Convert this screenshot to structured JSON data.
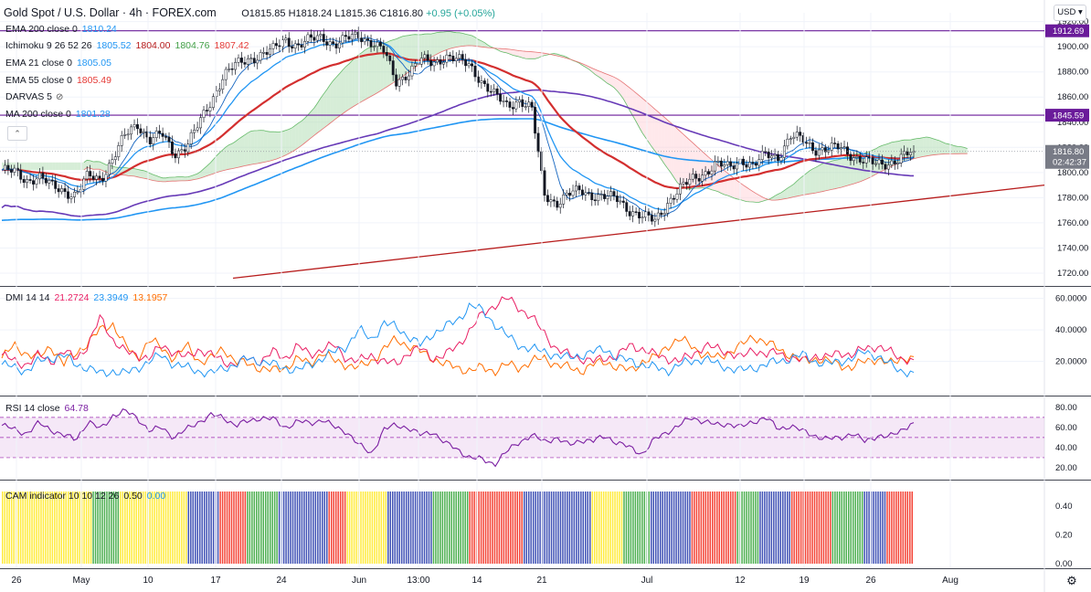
{
  "header": {
    "symbol": "Gold Spot / U.S. Dollar · 4h · FOREX.com",
    "open": "O1815.85",
    "high": "H1818.24",
    "low": "L1815.36",
    "close": "C1816.80",
    "change": "+0.95 (+0.05%)",
    "currency": "USD"
  },
  "indicators": [
    {
      "label": "EMA 200 close 0",
      "values": [
        {
          "v": "1810.24",
          "color": "#2196f3"
        }
      ]
    },
    {
      "label": "Ichimoku 9 26 52 26",
      "values": [
        {
          "v": "1805.52",
          "color": "#2196f3"
        },
        {
          "v": "1804.00",
          "color": "#b71c1c"
        },
        {
          "v": "1804.76",
          "color": "#43a047"
        },
        {
          "v": "1807.42",
          "color": "#e53935"
        }
      ]
    },
    {
      "label": "EMA 21 close 0",
      "values": [
        {
          "v": "1805.05",
          "color": "#2196f3"
        }
      ]
    },
    {
      "label": "EMA 55 close 0",
      "values": [
        {
          "v": "1805.49",
          "color": "#e53935"
        }
      ]
    },
    {
      "label": "DARVAS 5",
      "values": []
    },
    {
      "label": "MA 200 close 0",
      "values": [
        {
          "v": "1801.28",
          "color": "#2196f3"
        }
      ]
    }
  ],
  "dmi_label": {
    "label": "DMI 14 14",
    "values": [
      {
        "v": "21.2724",
        "color": "#e91e63"
      },
      {
        "v": "23.3949",
        "color": "#2196f3"
      },
      {
        "v": "13.1957",
        "color": "#ff6d00"
      }
    ]
  },
  "rsi_label": {
    "label": "RSI 14 close",
    "values": [
      {
        "v": "64.78",
        "color": "#7b1fa2"
      }
    ]
  },
  "cam_label": {
    "label": "CAM indicator 10 10 12 26",
    "values": [
      {
        "v": "0.50",
        "color": "#131722"
      },
      {
        "v": "0.00",
        "color": "#2196f3"
      }
    ]
  },
  "colors": {
    "up": "#26a69a",
    "down": "#ef5350",
    "ema21": "#2196f3",
    "ema55": "#d32f2f",
    "ma200": "#673ab7",
    "ema200": "#2196f3",
    "trend": "#b71c1c",
    "hline": "#6a1b9a",
    "cloud_up": "#a5d6a7",
    "cloud_down": "#ffcdd2",
    "rsi": "#7b1fa2",
    "rsi_band": "#e1bee7"
  },
  "chart_data": [
    {
      "type": "candlestick",
      "title": "Gold Spot / U.S. Dollar · 4h · FOREX.com",
      "ylim": [
        1712,
        1927
      ],
      "yticks": [
        1720,
        1740,
        1760,
        1780,
        1800,
        1820,
        1840,
        1860,
        1880,
        1900,
        1920
      ],
      "x_ticks": [
        "26",
        "May",
        "10",
        "17",
        "24",
        "Jun",
        "13:00",
        "14",
        "21",
        "Jul",
        "12",
        "19",
        "26",
        "Aug"
      ],
      "horizontal_lines": [
        {
          "value": 1912.69,
          "label": "1912.69"
        },
        {
          "value": 1845.59,
          "label": "1845.59"
        }
      ],
      "last_price": {
        "value": 1816.8,
        "label": "1816.80",
        "countdown": "02:42:37"
      },
      "trendline": {
        "from": [
          1716,
          "start"
        ],
        "to": [
          1790,
          "end"
        ]
      },
      "price_path": [
        1802,
        1800,
        1794,
        1797,
        1789,
        1786,
        1782,
        1797,
        1795,
        1811,
        1829,
        1839,
        1826,
        1830,
        1815,
        1822,
        1838,
        1857,
        1878,
        1885,
        1890,
        1894,
        1897,
        1906,
        1901,
        1905,
        1908,
        1902,
        1906,
        1909,
        1904,
        1896,
        1872,
        1880,
        1889,
        1887,
        1893,
        1889,
        1885,
        1872,
        1861,
        1853,
        1858,
        1850,
        1783,
        1776,
        1782,
        1786,
        1782,
        1780,
        1779,
        1770,
        1764,
        1762,
        1776,
        1786,
        1795,
        1800,
        1806,
        1804,
        1811,
        1804,
        1815,
        1813,
        1828,
        1826,
        1819,
        1818,
        1820,
        1814,
        1809,
        1806,
        1808,
        1812,
        1816
      ],
      "series": [
        {
          "name": "EMA 21 close 0",
          "last": 1805.05
        },
        {
          "name": "EMA 55 close 0",
          "last": 1805.49
        },
        {
          "name": "MA 200 close 0",
          "last": 1801.28
        },
        {
          "name": "EMA 200 close 0",
          "last": 1810.24
        }
      ]
    },
    {
      "type": "line",
      "title": "DMI 14 14",
      "ylim": [
        0,
        65
      ],
      "yticks": [
        20,
        40,
        60
      ],
      "ytick_labels": [
        "20.0000",
        "40.0000",
        "60.0000"
      ],
      "series": [
        {
          "name": "DI+",
          "values": [
            22,
            30,
            25,
            22,
            30,
            18,
            25,
            32,
            40,
            44,
            30,
            22,
            34,
            28,
            22,
            30,
            20,
            22,
            28,
            20,
            18,
            16,
            14,
            16,
            22,
            18,
            26,
            20,
            18,
            16,
            20,
            28,
            34,
            30,
            26,
            22,
            18,
            16,
            14,
            16,
            14,
            18,
            16,
            20,
            22,
            18,
            16,
            14,
            18,
            20,
            16,
            14,
            20,
            22,
            30,
            34,
            30,
            24,
            22,
            26,
            30,
            36,
            32,
            28,
            24,
            20,
            22,
            20,
            18,
            16,
            20,
            22,
            18,
            22,
            23
          ]
        },
        {
          "name": "DI-",
          "values": [
            24,
            20,
            18,
            24,
            20,
            26,
            22,
            30,
            48,
            34,
            26,
            24,
            22,
            30,
            26,
            22,
            28,
            24,
            20,
            18,
            22,
            20,
            26,
            22,
            30,
            24,
            28,
            30,
            22,
            20,
            24,
            20,
            18,
            26,
            28,
            22,
            24,
            30,
            40,
            50,
            56,
            60,
            54,
            48,
            38,
            28,
            24,
            22,
            20,
            22,
            24,
            30,
            28,
            24,
            22,
            20,
            24,
            30,
            28,
            26,
            22,
            28,
            24,
            26,
            22,
            20,
            24,
            22,
            26,
            24,
            28,
            30,
            26,
            22,
            21
          ]
        },
        {
          "name": "ADX",
          "values": [
            18,
            16,
            14,
            20,
            22,
            24,
            18,
            16,
            12,
            14,
            12,
            16,
            20,
            24,
            18,
            16,
            14,
            12,
            16,
            18,
            22,
            20,
            18,
            16,
            14,
            18,
            22,
            26,
            30,
            40,
            34,
            44,
            42,
            36,
            30,
            38,
            42,
            46,
            56,
            52,
            44,
            36,
            30,
            28,
            26,
            24,
            22,
            24,
            26,
            28,
            22,
            20,
            18,
            16,
            14,
            18,
            20,
            22,
            18,
            16,
            14,
            16,
            18,
            20,
            22,
            24,
            20,
            18,
            20,
            22,
            26,
            24,
            18,
            14,
            13
          ]
        }
      ]
    },
    {
      "type": "line",
      "title": "RSI 14 close",
      "ylim": [
        10,
        88
      ],
      "yticks": [
        20,
        40,
        60,
        80
      ],
      "band": [
        30,
        70
      ],
      "series": [
        {
          "name": "RSI 14 close",
          "values": [
            62,
            58,
            54,
            64,
            58,
            52,
            48,
            66,
            58,
            72,
            76,
            70,
            56,
            60,
            50,
            58,
            66,
            72,
            70,
            62,
            66,
            70,
            68,
            60,
            66,
            64,
            68,
            60,
            56,
            42,
            34,
            58,
            62,
            60,
            52,
            56,
            44,
            38,
            30,
            28,
            24,
            36,
            46,
            52,
            46,
            50,
            42,
            48,
            46,
            52,
            44,
            40,
            34,
            48,
            56,
            62,
            70,
            66,
            62,
            64,
            60,
            66,
            70,
            58,
            62,
            56,
            52,
            48,
            50,
            54,
            46,
            52,
            50,
            58,
            64.78
          ]
        }
      ]
    },
    {
      "type": "bar",
      "title": "CAM indicator 10 10 12 26",
      "ylim": [
        0,
        0.5
      ],
      "yticks": [
        0,
        0.2,
        0.4
      ],
      "ytick_labels": [
        "0.00",
        "0.20",
        "0.40"
      ],
      "bar_value": 0.5,
      "segments": [
        {
          "color": "#ffeb3b",
          "count": 40
        },
        {
          "color": "#4caf50",
          "count": 12
        },
        {
          "color": "#ffeb3b",
          "count": 30
        },
        {
          "color": "#3f51b5",
          "count": 14
        },
        {
          "color": "#f44336",
          "count": 12
        },
        {
          "color": "#4caf50",
          "count": 14
        },
        {
          "color": "#3f51b5",
          "count": 22
        },
        {
          "color": "#f44336",
          "count": 8
        },
        {
          "color": "#ffeb3b",
          "count": 18
        },
        {
          "color": "#3f51b5",
          "count": 20
        },
        {
          "color": "#4caf50",
          "count": 16
        },
        {
          "color": "#f44336",
          "count": 24
        },
        {
          "color": "#3f51b5",
          "count": 30
        },
        {
          "color": "#ffeb3b",
          "count": 14
        },
        {
          "color": "#4caf50",
          "count": 12
        },
        {
          "color": "#3f51b5",
          "count": 18
        },
        {
          "color": "#f44336",
          "count": 20
        },
        {
          "color": "#4caf50",
          "count": 10
        },
        {
          "color": "#3f51b5",
          "count": 14
        },
        {
          "color": "#f44336",
          "count": 18
        },
        {
          "color": "#4caf50",
          "count": 14
        },
        {
          "color": "#3f51b5",
          "count": 10
        },
        {
          "color": "#f44336",
          "count": 12
        }
      ]
    }
  ]
}
